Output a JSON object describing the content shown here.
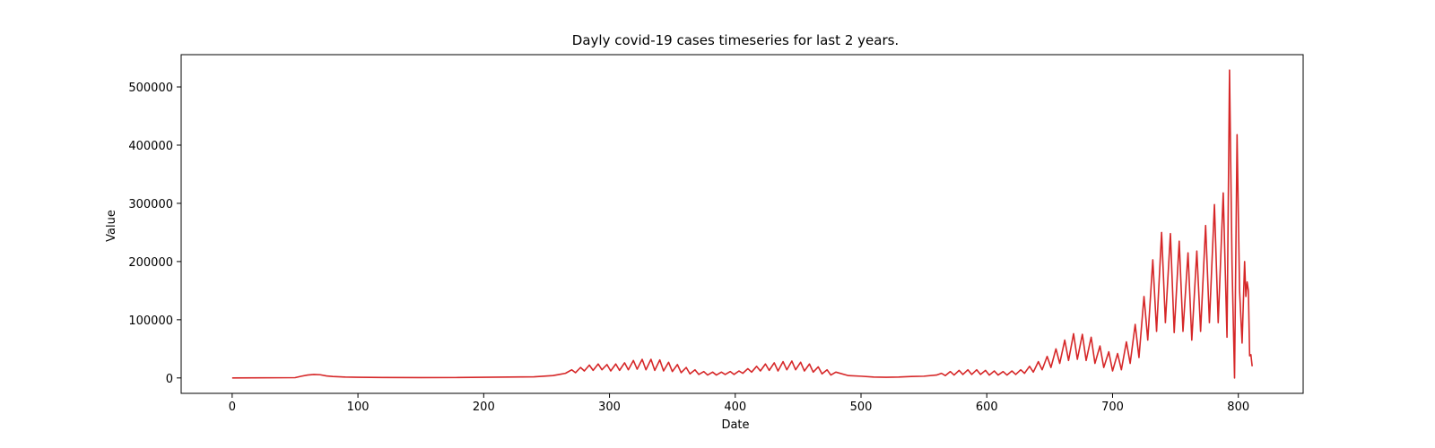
{
  "chart_data": {
    "type": "line",
    "title": "Dayly covid-19 cases timeseries for last 2 years.",
    "x_label": "Date",
    "y_label": "Value",
    "x": [
      0,
      50,
      55,
      60,
      65,
      70,
      75,
      80,
      90,
      100,
      120,
      150,
      180,
      200,
      220,
      240,
      255,
      260,
      265,
      270,
      273,
      277,
      280,
      284,
      287,
      291,
      294,
      298,
      301,
      305,
      308,
      312,
      315,
      319,
      322,
      326,
      329,
      333,
      336,
      340,
      343,
      347,
      350,
      354,
      357,
      361,
      364,
      368,
      371,
      375,
      378,
      382,
      385,
      389,
      392,
      396,
      399,
      403,
      406,
      410,
      413,
      417,
      420,
      424,
      427,
      431,
      434,
      438,
      441,
      445,
      448,
      452,
      455,
      459,
      462,
      466,
      469,
      473,
      476,
      480,
      490,
      500,
      510,
      520,
      530,
      540,
      550,
      560,
      564,
      567,
      571,
      574,
      578,
      581,
      585,
      588,
      592,
      595,
      599,
      602,
      606,
      609,
      613,
      616,
      620,
      623,
      627,
      630,
      634,
      637,
      641,
      644,
      648,
      651,
      655,
      658,
      662,
      665,
      669,
      672,
      676,
      679,
      683,
      686,
      690,
      693,
      697,
      700,
      704,
      707,
      711,
      714,
      718,
      721,
      725,
      728,
      732,
      735,
      739,
      742,
      746,
      749,
      753,
      756,
      760,
      763,
      767,
      770,
      774,
      777,
      781,
      784,
      788,
      791,
      793,
      795,
      797,
      799,
      801,
      803,
      805,
      806,
      807,
      808,
      809,
      810,
      811
    ],
    "series": [
      {
        "name": "Value",
        "color": "#d62728",
        "values": [
          0,
          500,
          3000,
          5000,
          6000,
          5500,
          3500,
          2500,
          1500,
          1200,
          800,
          600,
          700,
          1200,
          1500,
          2000,
          4000,
          6000,
          8000,
          14000,
          9000,
          18000,
          12000,
          22000,
          13000,
          24000,
          14000,
          23000,
          12000,
          24000,
          13000,
          26000,
          14000,
          30000,
          15000,
          32000,
          14000,
          32000,
          13000,
          31000,
          12000,
          27000,
          11000,
          23000,
          9000,
          18000,
          7000,
          14000,
          6000,
          11000,
          5000,
          10000,
          5000,
          10000,
          6000,
          11000,
          6000,
          12000,
          8000,
          16000,
          10000,
          20000,
          12000,
          24000,
          13000,
          26000,
          12000,
          28000,
          14000,
          29000,
          14000,
          27000,
          12000,
          24000,
          10000,
          19000,
          7000,
          14000,
          5000,
          10000,
          4000,
          3000,
          1500,
          1200,
          1500,
          2500,
          3000,
          5000,
          8000,
          4000,
          11000,
          5000,
          13000,
          6000,
          14000,
          6000,
          14000,
          6000,
          13000,
          5000,
          12000,
          5000,
          11000,
          5000,
          12000,
          6000,
          14000,
          8000,
          20000,
          10000,
          28000,
          14000,
          37000,
          18000,
          50000,
          25000,
          65000,
          30000,
          76000,
          32000,
          75000,
          30000,
          70000,
          25000,
          55000,
          18000,
          45000,
          12000,
          42000,
          14000,
          62000,
          25000,
          92000,
          35000,
          140000,
          65000,
          203000,
          80000,
          250000,
          95000,
          248000,
          78000,
          235000,
          80000,
          215000,
          65000,
          218000,
          80000,
          262000,
          95000,
          298000,
          95000,
          318000,
          70000,
          529000,
          195000,
          0,
          418000,
          150000,
          60000,
          200000,
          140000,
          165000,
          150000,
          38000,
          40000,
          20000
        ]
      }
    ],
    "xlim": [
      -40.55,
      851.55
    ],
    "xticks": [
      0,
      100,
      200,
      300,
      400,
      500,
      600,
      700,
      800
    ],
    "ylim": [
      -26450,
      555450
    ],
    "yticks": [
      0,
      100000,
      200000,
      300000,
      400000,
      500000
    ]
  }
}
